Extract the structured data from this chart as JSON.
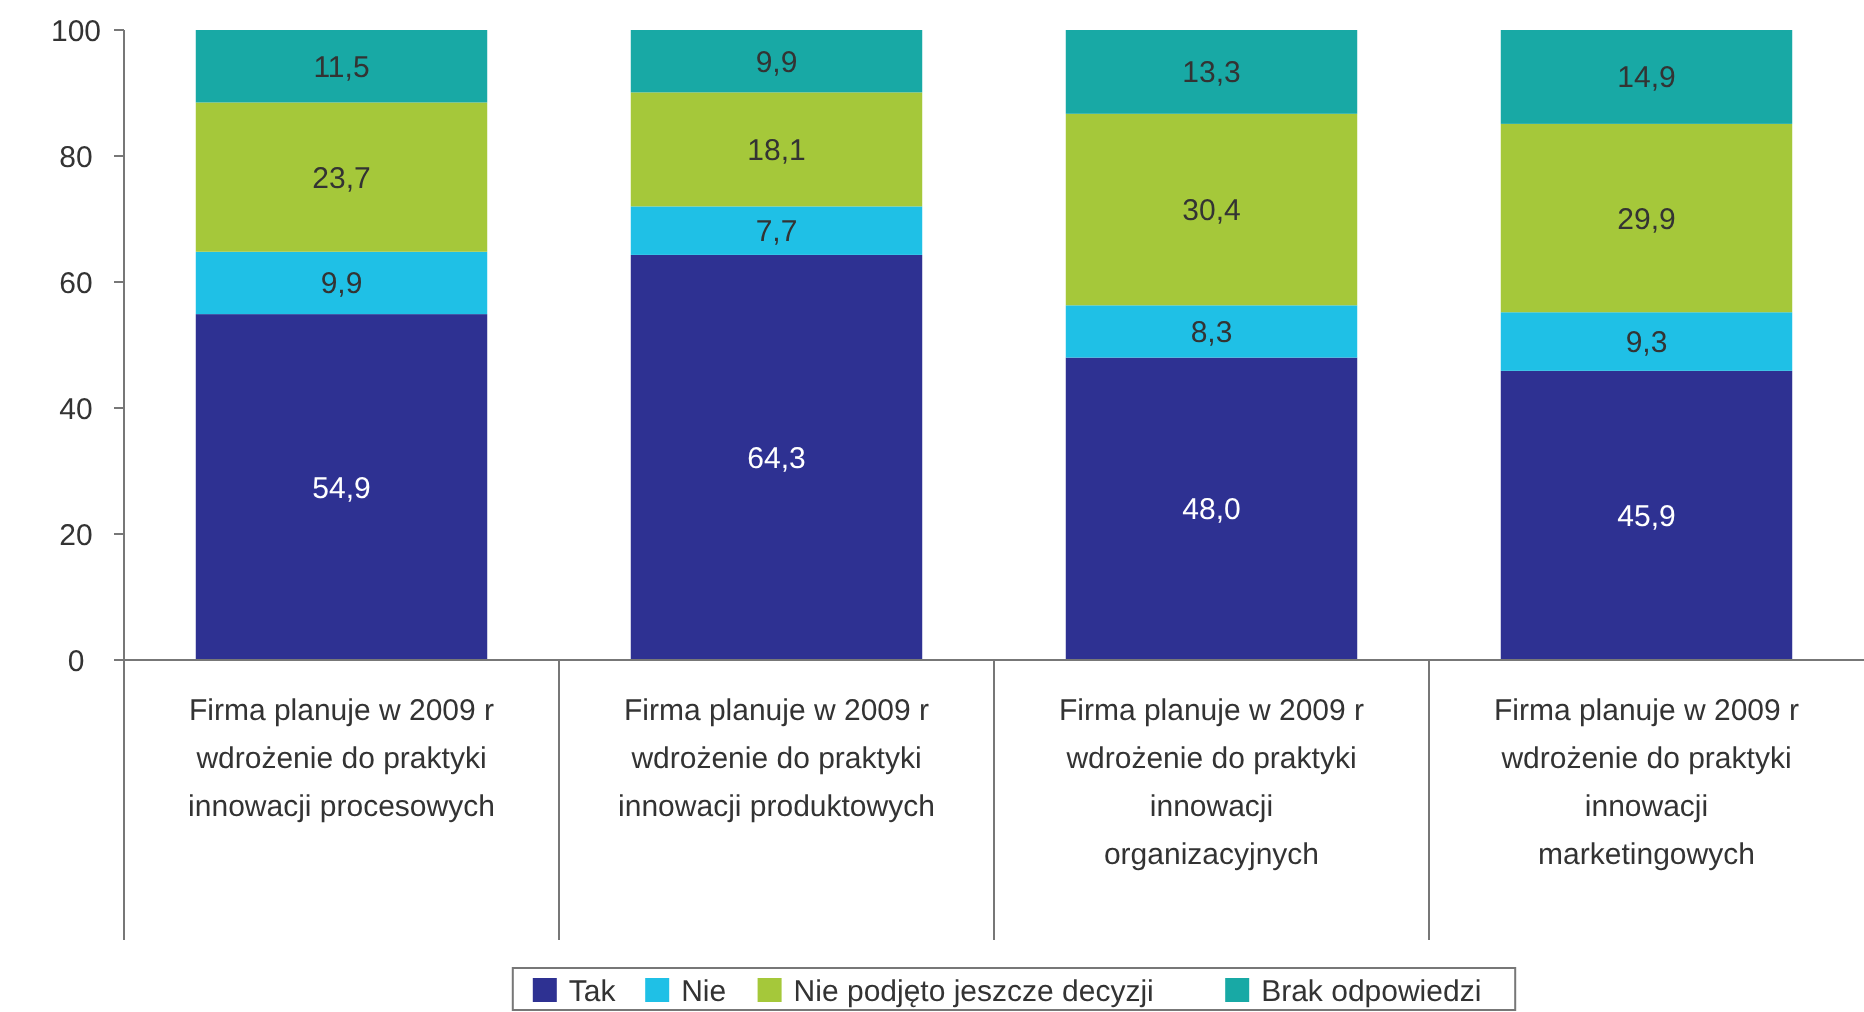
{
  "chart_data": {
    "type": "bar",
    "stacked": true,
    "categories": [
      "Firma planuje w 2009 r wdrożenie do praktyki innowacji procesowych",
      "Firma planuje w 2009 r wdrożenie do praktyki innowacji produktowych",
      "Firma planuje w 2009 r wdrożenie do praktyki innowacji organizacyjnych",
      "Firma planuje w 2009 r wdrożenie do praktyki innowacji marketingowych"
    ],
    "series": [
      {
        "name": "Tak",
        "color": "#2e3192",
        "values": [
          54.9,
          64.3,
          48.0,
          45.9
        ],
        "value_labels": [
          "54,9",
          "64,3",
          "48,0",
          "45,9"
        ]
      },
      {
        "name": "Nie",
        "color": "#1fc0e6",
        "values": [
          9.9,
          7.7,
          8.3,
          9.3
        ],
        "value_labels": [
          "9,9",
          "7,7",
          "8,3",
          "9,3"
        ]
      },
      {
        "name": "Nie podjęto jeszcze decyzji",
        "color": "#a5c83a",
        "values": [
          23.7,
          18.1,
          30.4,
          29.9
        ],
        "value_labels": [
          "23,7",
          "18,1",
          "30,4",
          "29,9"
        ]
      },
      {
        "name": "Brak odpowiedzi",
        "color": "#18a9a5",
        "values": [
          11.5,
          9.9,
          13.3,
          14.9
        ],
        "value_labels": [
          "11,5",
          "9,9",
          "13,3",
          "14,9"
        ]
      }
    ],
    "ylim": [
      0,
      100
    ],
    "yticks": [
      0,
      20,
      40,
      60,
      80,
      100
    ],
    "grid": false,
    "legend": "bottom"
  }
}
